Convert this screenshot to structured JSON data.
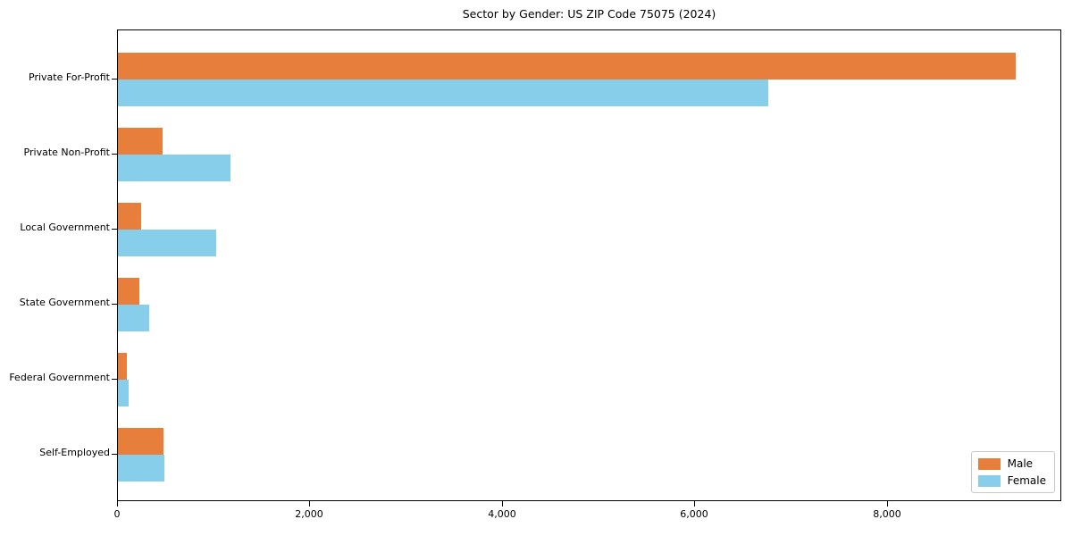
{
  "figure": {
    "background": "#ffffff"
  },
  "chart_data": {
    "type": "bar",
    "orientation": "horizontal",
    "title": "Sector by Gender: US ZIP Code 75075 (2024)",
    "categories": [
      "Private For-Profit",
      "Private Non-Profit",
      "Local Government",
      "State Government",
      "Federal Government",
      "Self-Employed"
    ],
    "series": [
      {
        "name": "Male",
        "color": "#e87e3c",
        "values": [
          9330,
          465,
          240,
          225,
          95,
          475
        ]
      },
      {
        "name": "Female",
        "color": "#87ceeb",
        "values": [
          6760,
          1170,
          1020,
          325,
          110,
          485
        ]
      }
    ],
    "xlabel": "",
    "ylabel": "",
    "xlim": [
      0,
      9810
    ],
    "xticks": [
      0,
      2000,
      4000,
      6000,
      8000
    ],
    "xtick_labels": [
      "0",
      "2,000",
      "4,000",
      "6,000",
      "8,000"
    ],
    "grid": false,
    "legend_position": "lower right"
  }
}
